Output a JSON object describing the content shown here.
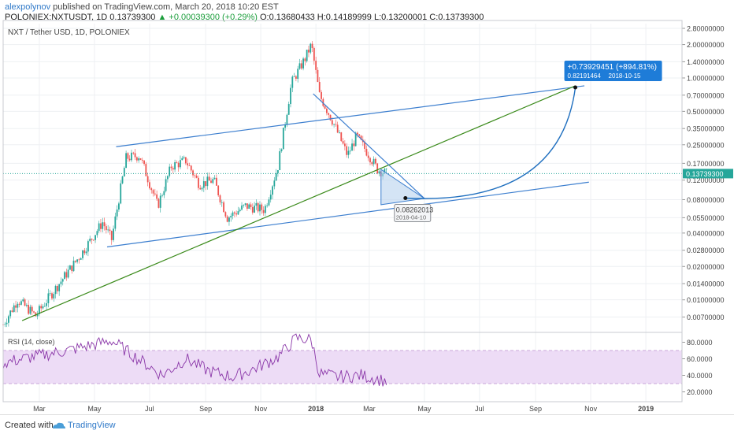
{
  "header": {
    "author": "alexpolynov",
    "published": "published on TradingView.com, March 20, 2018 10:20 EST",
    "symbol": "POLONIEX:NXTUSDT, 1D",
    "last": "0.13739300",
    "change": "▲ +0.00039300 (+0.29%)",
    "ohlc": "O:0.13680433 H:0.14189999 L:0.13200001 C:0.13739300"
  },
  "footer": {
    "created_with": "Created with",
    "brand": "TradingView"
  },
  "colors": {
    "up": "#26a69a",
    "down": "#ef5350",
    "trend": "#3d7fcf",
    "diag": "#3a8a1a",
    "rsi": "#8a36a8",
    "rsi_band": "#eddcf6"
  },
  "chart_data": [
    {
      "type": "candlestick",
      "title": "NXT / Tether USD, 1D, POLONIEX",
      "x_tick_labels": [
        "Mar",
        "May",
        "Jul",
        "Sep",
        "Nov",
        "2018",
        "Mar",
        "May",
        "Jul",
        "Sep",
        "Nov",
        "2019"
      ],
      "y_scale": "log",
      "y_tick_labels": [
        "2.80000000",
        "2.00000000",
        "1.40000000",
        "1.00000000",
        "0.70000000",
        "0.50000000",
        "0.35000000",
        "0.25000000",
        "0.17000000",
        "0.12000000",
        "0.08000000",
        "0.05500000",
        "0.04000000",
        "0.02800000",
        "0.02000000",
        "0.01400000",
        "0.01000000",
        "0.00700000"
      ],
      "current_price_label": "0.13739300",
      "price_anchor_points": [
        {
          "date": "2017-01-20",
          "price": 0.006
        },
        {
          "date": "2017-02-05",
          "price": 0.01
        },
        {
          "date": "2017-02-25",
          "price": 0.0072
        },
        {
          "date": "2017-03-20",
          "price": 0.013
        },
        {
          "date": "2017-04-15",
          "price": 0.025
        },
        {
          "date": "2017-05-10",
          "price": 0.05
        },
        {
          "date": "2017-05-20",
          "price": 0.035
        },
        {
          "date": "2017-06-05",
          "price": 0.19
        },
        {
          "date": "2017-06-20",
          "price": 0.2
        },
        {
          "date": "2017-07-10",
          "price": 0.07
        },
        {
          "date": "2017-07-25",
          "price": 0.16
        },
        {
          "date": "2017-08-10",
          "price": 0.18
        },
        {
          "date": "2017-08-25",
          "price": 0.11
        },
        {
          "date": "2017-09-10",
          "price": 0.12
        },
        {
          "date": "2017-09-25",
          "price": 0.055
        },
        {
          "date": "2017-10-15",
          "price": 0.07
        },
        {
          "date": "2017-11-05",
          "price": 0.065
        },
        {
          "date": "2017-11-20",
          "price": 0.16
        },
        {
          "date": "2017-12-05",
          "price": 0.9
        },
        {
          "date": "2017-12-20",
          "price": 1.5
        },
        {
          "date": "2017-12-27",
          "price": 2.0
        },
        {
          "date": "2018-01-05",
          "price": 0.7
        },
        {
          "date": "2018-01-20",
          "price": 0.4
        },
        {
          "date": "2018-02-05",
          "price": 0.2
        },
        {
          "date": "2018-02-15",
          "price": 0.3
        },
        {
          "date": "2018-03-01",
          "price": 0.2
        },
        {
          "date": "2018-03-10",
          "price": 0.15
        },
        {
          "date": "2018-03-20",
          "price": 0.1374
        }
      ],
      "annotations": {
        "target": {
          "change": "+0.73929451 (+894.81%)",
          "price": "0.82191464",
          "date": "2018-10-15"
        },
        "low": {
          "price": "0.08262013",
          "date": "2018-04-10"
        }
      }
    },
    {
      "type": "line",
      "title": "RSI (14, close)",
      "y_tick_labels": [
        "80.0000",
        "60.0000",
        "40.0000",
        "20.0000"
      ],
      "band": [
        30,
        70
      ],
      "rsi_anchor_points": [
        {
          "date": "2017-01-20",
          "value": 55
        },
        {
          "date": "2017-02-20",
          "value": 62
        },
        {
          "date": "2017-04-01",
          "value": 70
        },
        {
          "date": "2017-05-20",
          "value": 82
        },
        {
          "date": "2017-06-25",
          "value": 55
        },
        {
          "date": "2017-07-15",
          "value": 40
        },
        {
          "date": "2017-08-10",
          "value": 60
        },
        {
          "date": "2017-09-05",
          "value": 45
        },
        {
          "date": "2017-10-01",
          "value": 38
        },
        {
          "date": "2017-10-25",
          "value": 48
        },
        {
          "date": "2017-11-20",
          "value": 62
        },
        {
          "date": "2017-12-10",
          "value": 85
        },
        {
          "date": "2017-12-27",
          "value": 83
        },
        {
          "date": "2018-01-05",
          "value": 42
        },
        {
          "date": "2018-01-25",
          "value": 38
        },
        {
          "date": "2018-02-20",
          "value": 40
        },
        {
          "date": "2018-03-20",
          "value": 33
        }
      ]
    }
  ]
}
